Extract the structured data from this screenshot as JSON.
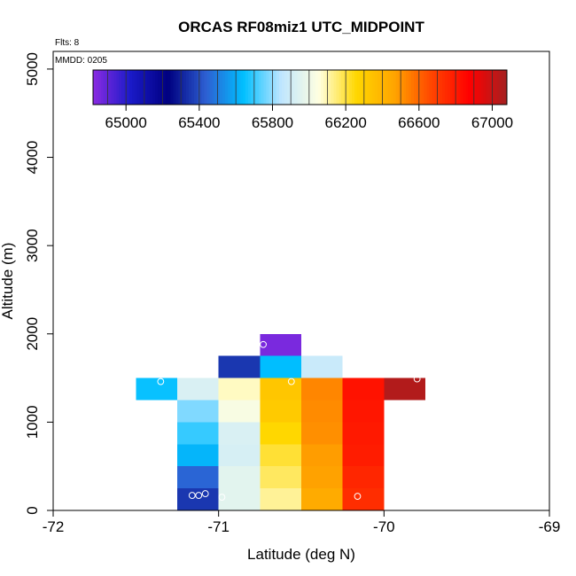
{
  "chart_data": {
    "type": "heatmap",
    "title": "ORCAS RF08miz1 UTC_MIDPOINT",
    "xlabel": "Latitude (deg N)",
    "ylabel": "Altitude (m)",
    "xlim": [
      -72,
      -69
    ],
    "ylim": [
      0,
      5200
    ],
    "xticks": [
      -72,
      -71,
      -70,
      -69
    ],
    "xtick_labels": [
      "-72",
      "-71",
      "-70",
      "-69"
    ],
    "yticks": [
      0,
      1000,
      2000,
      3000,
      4000,
      5000
    ],
    "ytick_labels": [
      "0",
      "1000",
      "2000",
      "3000",
      "4000",
      "5000"
    ],
    "notes": {
      "flights": "Flts: 8",
      "date": "MMDD: 0205"
    },
    "colorbar": {
      "range": [
        64820,
        67080
      ],
      "ticks": [
        65000,
        65400,
        65800,
        66200,
        66600,
        67000
      ],
      "tick_labels": [
        "65000",
        "65400",
        "65800",
        "66200",
        "66600",
        "67000"
      ],
      "stops": [
        "#8a2be2",
        "#1a1ac8",
        "#000080",
        "#2d5fd2",
        "#00bfff",
        "#bfe6ff",
        "#ffffe0",
        "#ffd700",
        "#ffa500",
        "#ff4500",
        "#ff0000",
        "#a52020"
      ]
    },
    "cell_width_deg": 0.25,
    "cell_height_m": 250,
    "cells": [
      {
        "lat": -71.125,
        "alt": 125,
        "value": 65350
      },
      {
        "lat": -71.125,
        "alt": 375,
        "value": 65450
      },
      {
        "lat": -71.125,
        "alt": 625,
        "value": 65620
      },
      {
        "lat": -71.125,
        "alt": 875,
        "value": 65700
      },
      {
        "lat": -71.125,
        "alt": 1125,
        "value": 65780
      },
      {
        "lat": -71.125,
        "alt": 1375,
        "value": 65930
      },
      {
        "lat": -71.375,
        "alt": 1375,
        "value": 65650
      },
      {
        "lat": -70.875,
        "alt": 125,
        "value": 65960
      },
      {
        "lat": -70.875,
        "alt": 375,
        "value": 65960
      },
      {
        "lat": -70.875,
        "alt": 625,
        "value": 65920
      },
      {
        "lat": -70.875,
        "alt": 875,
        "value": 65930
      },
      {
        "lat": -70.875,
        "alt": 1125,
        "value": 66030
      },
      {
        "lat": -70.875,
        "alt": 1375,
        "value": 66080
      },
      {
        "lat": -70.875,
        "alt": 1625,
        "value": 65350
      },
      {
        "lat": -70.625,
        "alt": 125,
        "value": 66120
      },
      {
        "lat": -70.625,
        "alt": 375,
        "value": 66170
      },
      {
        "lat": -70.625,
        "alt": 625,
        "value": 66210
      },
      {
        "lat": -70.625,
        "alt": 875,
        "value": 66260
      },
      {
        "lat": -70.625,
        "alt": 1125,
        "value": 66310
      },
      {
        "lat": -70.625,
        "alt": 1375,
        "value": 66330
      },
      {
        "lat": -70.625,
        "alt": 1625,
        "value": 65640
      },
      {
        "lat": -70.625,
        "alt": 1875,
        "value": 64850
      },
      {
        "lat": -70.375,
        "alt": 125,
        "value": 66440
      },
      {
        "lat": -70.375,
        "alt": 375,
        "value": 66470
      },
      {
        "lat": -70.375,
        "alt": 625,
        "value": 66480
      },
      {
        "lat": -70.375,
        "alt": 875,
        "value": 66510
      },
      {
        "lat": -70.375,
        "alt": 1125,
        "value": 66520
      },
      {
        "lat": -70.375,
        "alt": 1375,
        "value": 66530
      },
      {
        "lat": -70.375,
        "alt": 1625,
        "value": 65880
      },
      {
        "lat": -70.125,
        "alt": 125,
        "value": 66740
      },
      {
        "lat": -70.125,
        "alt": 375,
        "value": 66760
      },
      {
        "lat": -70.125,
        "alt": 625,
        "value": 66790
      },
      {
        "lat": -70.125,
        "alt": 875,
        "value": 66800
      },
      {
        "lat": -70.125,
        "alt": 1125,
        "value": 66810
      },
      {
        "lat": -70.125,
        "alt": 1375,
        "value": 66820
      },
      {
        "lat": -69.875,
        "alt": 1375,
        "value": 67050
      }
    ],
    "points": [
      {
        "lat": -71.35,
        "alt": 1460
      },
      {
        "lat": -71.16,
        "alt": 170
      },
      {
        "lat": -71.12,
        "alt": 170
      },
      {
        "lat": -71.08,
        "alt": 190
      },
      {
        "lat": -70.98,
        "alt": 150
      },
      {
        "lat": -70.73,
        "alt": 1880
      },
      {
        "lat": -70.56,
        "alt": 1460
      },
      {
        "lat": -70.16,
        "alt": 160
      },
      {
        "lat": -69.8,
        "alt": 1490
      }
    ]
  }
}
